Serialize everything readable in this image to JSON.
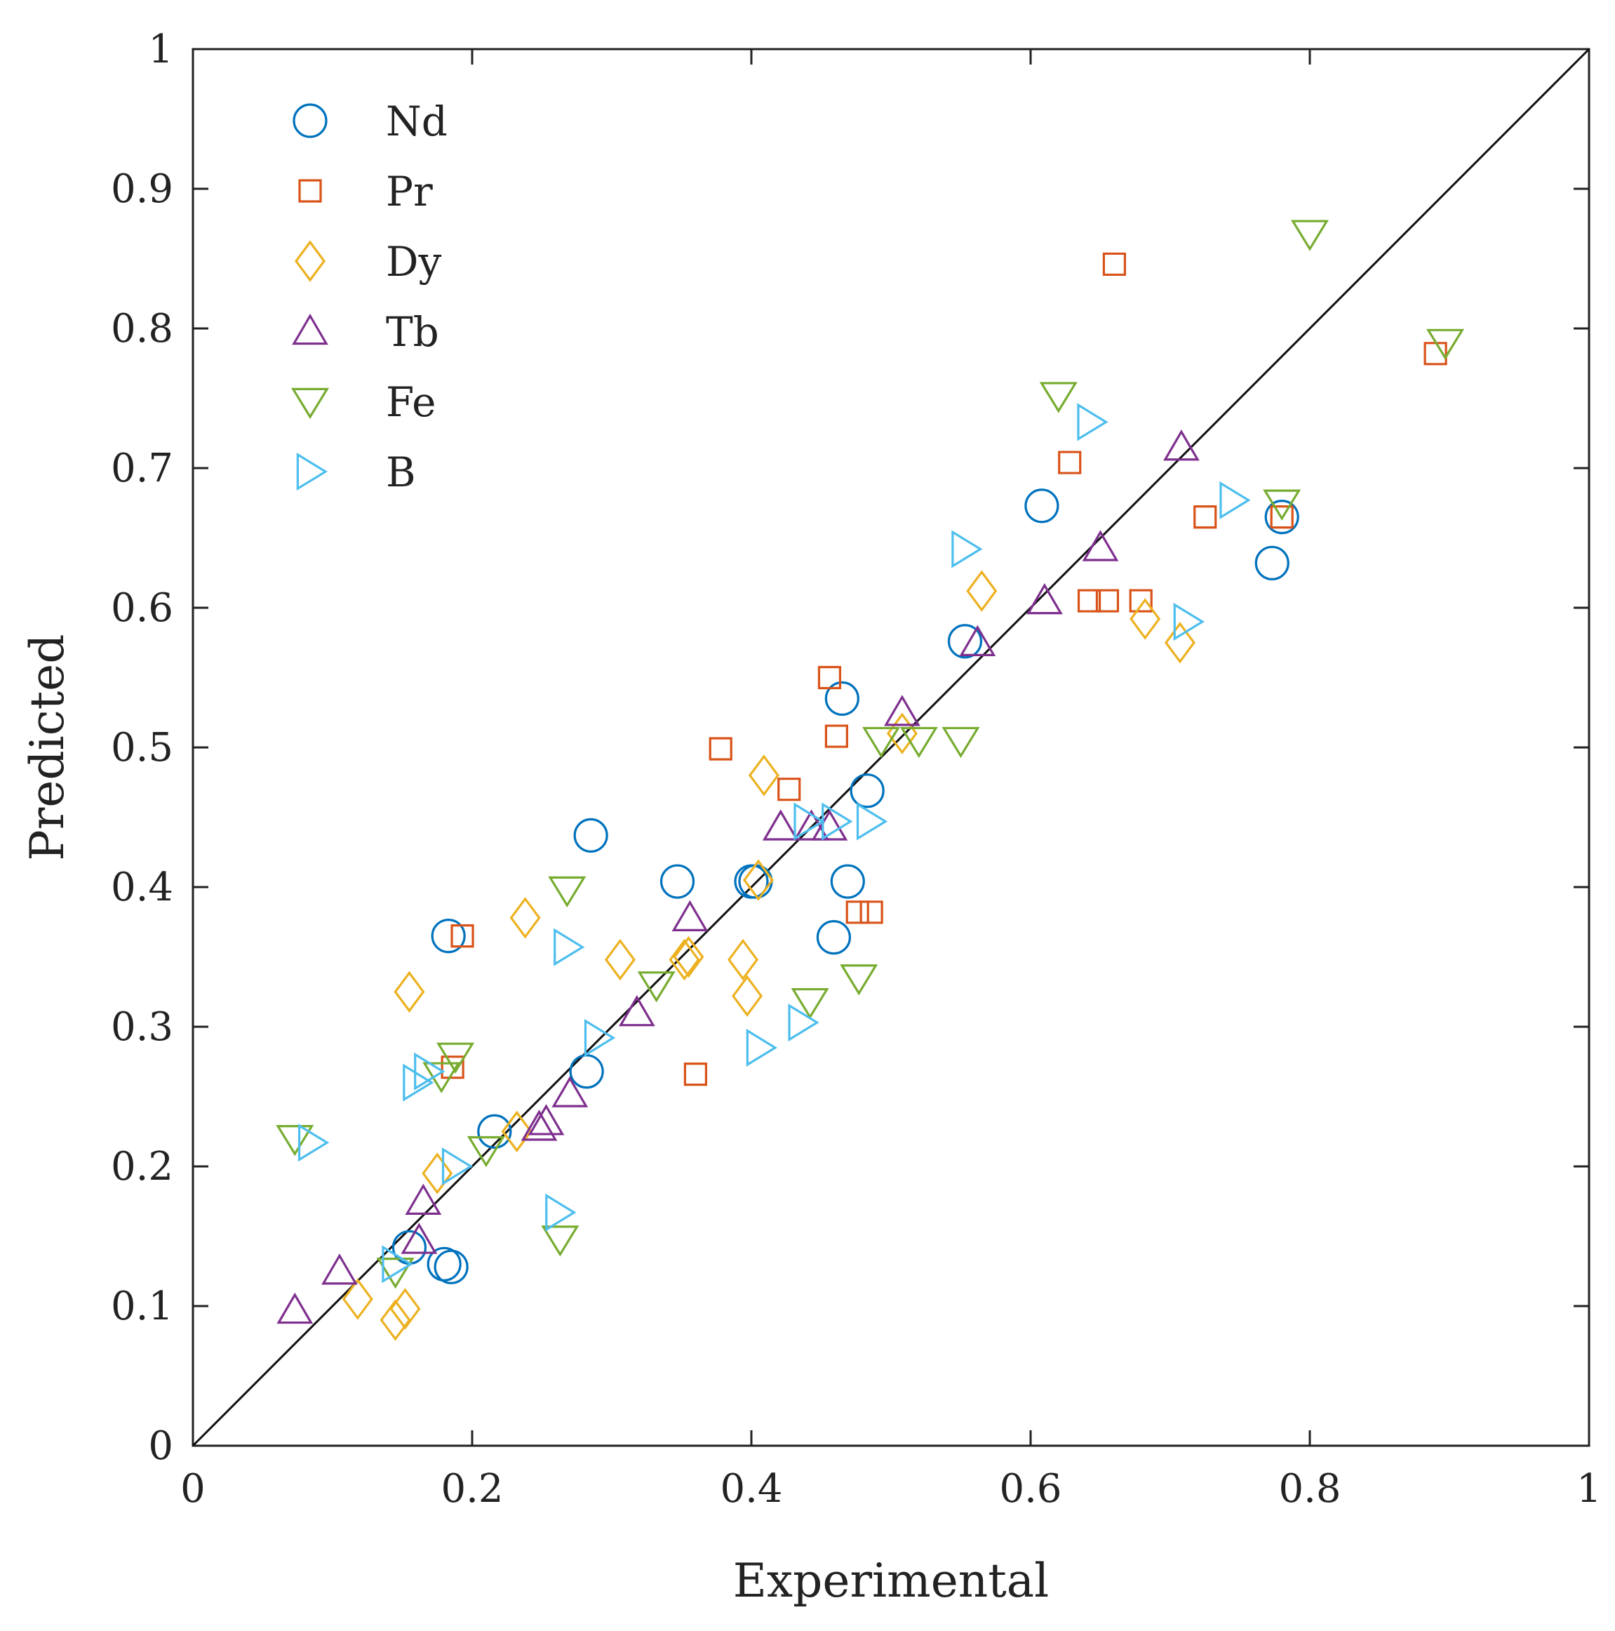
{
  "chart_data": {
    "type": "scatter",
    "xlabel": "Experimental",
    "ylabel": "Predicted",
    "xlim": [
      0,
      1
    ],
    "ylim": [
      0,
      1
    ],
    "xticks": [
      "0",
      "0.2",
      "0.4",
      "0.6",
      "0.8",
      "1"
    ],
    "yticks": [
      "0",
      "0.1",
      "0.2",
      "0.3",
      "0.4",
      "0.5",
      "0.6",
      "0.7",
      "0.8",
      "0.9",
      "1"
    ],
    "reference_line": "y = x",
    "grid": false,
    "legend_position": "top-left",
    "series": [
      {
        "name": "Nd",
        "marker": "circle",
        "color": "#0072BD",
        "points": [
          [
            0.155,
            0.142
          ],
          [
            0.18,
            0.13
          ],
          [
            0.185,
            0.128
          ],
          [
            0.183,
            0.365
          ],
          [
            0.216,
            0.225
          ],
          [
            0.282,
            0.268
          ],
          [
            0.285,
            0.437
          ],
          [
            0.347,
            0.404
          ],
          [
            0.4,
            0.404
          ],
          [
            0.403,
            0.404
          ],
          [
            0.459,
            0.364
          ],
          [
            0.465,
            0.535
          ],
          [
            0.469,
            0.404
          ],
          [
            0.483,
            0.469
          ],
          [
            0.553,
            0.576
          ],
          [
            0.608,
            0.673
          ],
          [
            0.773,
            0.632
          ],
          [
            0.78,
            0.665
          ]
        ]
      },
      {
        "name": "Pr",
        "marker": "square",
        "color": "#D95319",
        "points": [
          [
            0.186,
            0.271
          ],
          [
            0.193,
            0.365
          ],
          [
            0.36,
            0.266
          ],
          [
            0.378,
            0.499
          ],
          [
            0.427,
            0.47
          ],
          [
            0.456,
            0.55
          ],
          [
            0.461,
            0.508
          ],
          [
            0.476,
            0.382
          ],
          [
            0.486,
            0.382
          ],
          [
            0.628,
            0.704
          ],
          [
            0.642,
            0.605
          ],
          [
            0.655,
            0.605
          ],
          [
            0.66,
            0.846
          ],
          [
            0.679,
            0.605
          ],
          [
            0.725,
            0.665
          ],
          [
            0.78,
            0.665
          ],
          [
            0.89,
            0.782
          ]
        ]
      },
      {
        "name": "Dy",
        "marker": "diamond",
        "color": "#EDB120",
        "points": [
          [
            0.118,
            0.105
          ],
          [
            0.145,
            0.09
          ],
          [
            0.152,
            0.098
          ],
          [
            0.155,
            0.325
          ],
          [
            0.175,
            0.195
          ],
          [
            0.232,
            0.225
          ],
          [
            0.238,
            0.378
          ],
          [
            0.306,
            0.348
          ],
          [
            0.352,
            0.348
          ],
          [
            0.355,
            0.35
          ],
          [
            0.394,
            0.348
          ],
          [
            0.397,
            0.322
          ],
          [
            0.405,
            0.405
          ],
          [
            0.409,
            0.48
          ],
          [
            0.508,
            0.51
          ],
          [
            0.565,
            0.612
          ],
          [
            0.682,
            0.592
          ],
          [
            0.707,
            0.575
          ]
        ]
      },
      {
        "name": "Tb",
        "marker": "triangle-up",
        "color": "#7E2F8E",
        "points": [
          [
            0.073,
            0.097
          ],
          [
            0.105,
            0.125
          ],
          [
            0.162,
            0.147
          ],
          [
            0.165,
            0.175
          ],
          [
            0.248,
            0.228
          ],
          [
            0.253,
            0.232
          ],
          [
            0.27,
            0.252
          ],
          [
            0.318,
            0.31
          ],
          [
            0.356,
            0.378
          ],
          [
            0.421,
            0.443
          ],
          [
            0.443,
            0.443
          ],
          [
            0.456,
            0.443
          ],
          [
            0.508,
            0.525
          ],
          [
            0.562,
            0.575
          ],
          [
            0.61,
            0.605
          ],
          [
            0.65,
            0.643
          ],
          [
            0.708,
            0.715
          ]
        ]
      },
      {
        "name": "Fe",
        "marker": "triangle-down",
        "color": "#77AC30",
        "points": [
          [
            0.073,
            0.22
          ],
          [
            0.145,
            0.125
          ],
          [
            0.178,
            0.265
          ],
          [
            0.188,
            0.279
          ],
          [
            0.21,
            0.212
          ],
          [
            0.263,
            0.148
          ],
          [
            0.268,
            0.398
          ],
          [
            0.332,
            0.33
          ],
          [
            0.442,
            0.318
          ],
          [
            0.477,
            0.335
          ],
          [
            0.493,
            0.505
          ],
          [
            0.52,
            0.505
          ],
          [
            0.55,
            0.505
          ],
          [
            0.62,
            0.752
          ],
          [
            0.78,
            0.675
          ],
          [
            0.8,
            0.868
          ],
          [
            0.897,
            0.79
          ]
        ]
      },
      {
        "name": "B",
        "marker": "triangle-right",
        "color": "#4DBEEE",
        "points": [
          [
            0.085,
            0.217
          ],
          [
            0.145,
            0.13
          ],
          [
            0.16,
            0.26
          ],
          [
            0.168,
            0.268
          ],
          [
            0.188,
            0.2
          ],
          [
            0.262,
            0.167
          ],
          [
            0.268,
            0.357
          ],
          [
            0.29,
            0.292
          ],
          [
            0.406,
            0.285
          ],
          [
            0.436,
            0.303
          ],
          [
            0.44,
            0.447
          ],
          [
            0.46,
            0.447
          ],
          [
            0.485,
            0.447
          ],
          [
            0.553,
            0.642
          ],
          [
            0.643,
            0.733
          ],
          [
            0.712,
            0.59
          ],
          [
            0.745,
            0.677
          ]
        ]
      }
    ]
  }
}
